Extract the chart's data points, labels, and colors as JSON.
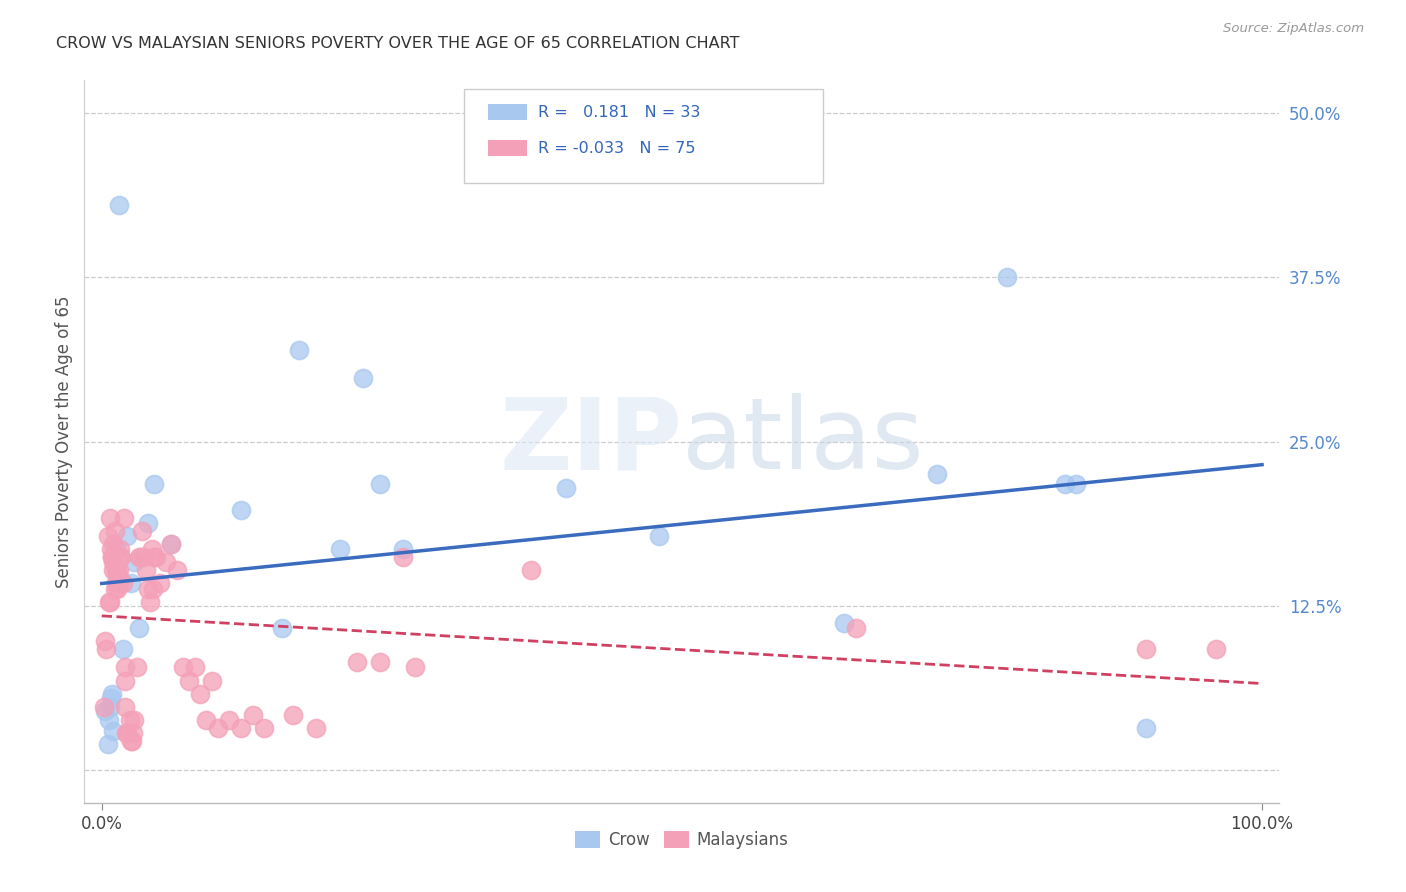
{
  "title": "CROW VS MALAYSIAN SENIORS POVERTY OVER THE AGE OF 65 CORRELATION CHART",
  "source": "Source: ZipAtlas.com",
  "ylabel_label": "Seniors Poverty Over the Age of 65",
  "crow_color": "#a8c8f0",
  "malay_color": "#f4a0b8",
  "crow_line_color": "#3a6bbf",
  "malay_line_color": "#d04060",
  "watermark_zip": "ZIP",
  "watermark_atlas": "atlas",
  "crow_points": [
    [
      0.003,
      0.045
    ],
    [
      0.005,
      0.02
    ],
    [
      0.006,
      0.038
    ],
    [
      0.007,
      0.048
    ],
    [
      0.008,
      0.055
    ],
    [
      0.009,
      0.058
    ],
    [
      0.01,
      0.03
    ],
    [
      0.012,
      0.168
    ],
    [
      0.014,
      0.148
    ],
    [
      0.015,
      0.43
    ],
    [
      0.018,
      0.092
    ],
    [
      0.022,
      0.178
    ],
    [
      0.025,
      0.142
    ],
    [
      0.028,
      0.158
    ],
    [
      0.032,
      0.108
    ],
    [
      0.04,
      0.188
    ],
    [
      0.045,
      0.218
    ],
    [
      0.06,
      0.172
    ],
    [
      0.12,
      0.198
    ],
    [
      0.155,
      0.108
    ],
    [
      0.17,
      0.32
    ],
    [
      0.205,
      0.168
    ],
    [
      0.225,
      0.298
    ],
    [
      0.24,
      0.218
    ],
    [
      0.26,
      0.168
    ],
    [
      0.4,
      0.215
    ],
    [
      0.48,
      0.178
    ],
    [
      0.64,
      0.112
    ],
    [
      0.72,
      0.225
    ],
    [
      0.78,
      0.375
    ],
    [
      0.83,
      0.218
    ],
    [
      0.84,
      0.218
    ],
    [
      0.9,
      0.032
    ]
  ],
  "malay_points": [
    [
      0.002,
      0.048
    ],
    [
      0.003,
      0.098
    ],
    [
      0.004,
      0.092
    ],
    [
      0.005,
      0.178
    ],
    [
      0.006,
      0.128
    ],
    [
      0.007,
      0.128
    ],
    [
      0.007,
      0.192
    ],
    [
      0.008,
      0.168
    ],
    [
      0.009,
      0.162
    ],
    [
      0.009,
      0.162
    ],
    [
      0.01,
      0.172
    ],
    [
      0.01,
      0.158
    ],
    [
      0.01,
      0.152
    ],
    [
      0.011,
      0.138
    ],
    [
      0.011,
      0.182
    ],
    [
      0.012,
      0.152
    ],
    [
      0.012,
      0.142
    ],
    [
      0.013,
      0.148
    ],
    [
      0.013,
      0.138
    ],
    [
      0.013,
      0.152
    ],
    [
      0.014,
      0.148
    ],
    [
      0.015,
      0.152
    ],
    [
      0.015,
      0.142
    ],
    [
      0.016,
      0.162
    ],
    [
      0.016,
      0.168
    ],
    [
      0.017,
      0.162
    ],
    [
      0.018,
      0.142
    ],
    [
      0.019,
      0.192
    ],
    [
      0.02,
      0.078
    ],
    [
      0.02,
      0.068
    ],
    [
      0.02,
      0.048
    ],
    [
      0.021,
      0.028
    ],
    [
      0.022,
      0.028
    ],
    [
      0.024,
      0.038
    ],
    [
      0.025,
      0.022
    ],
    [
      0.026,
      0.022
    ],
    [
      0.027,
      0.028
    ],
    [
      0.028,
      0.038
    ],
    [
      0.03,
      0.078
    ],
    [
      0.032,
      0.162
    ],
    [
      0.034,
      0.162
    ],
    [
      0.035,
      0.182
    ],
    [
      0.036,
      0.162
    ],
    [
      0.038,
      0.152
    ],
    [
      0.04,
      0.138
    ],
    [
      0.042,
      0.128
    ],
    [
      0.043,
      0.168
    ],
    [
      0.044,
      0.138
    ],
    [
      0.045,
      0.162
    ],
    [
      0.047,
      0.162
    ],
    [
      0.05,
      0.142
    ],
    [
      0.055,
      0.158
    ],
    [
      0.06,
      0.172
    ],
    [
      0.065,
      0.152
    ],
    [
      0.07,
      0.078
    ],
    [
      0.075,
      0.068
    ],
    [
      0.08,
      0.078
    ],
    [
      0.085,
      0.058
    ],
    [
      0.09,
      0.038
    ],
    [
      0.095,
      0.068
    ],
    [
      0.1,
      0.032
    ],
    [
      0.11,
      0.038
    ],
    [
      0.12,
      0.032
    ],
    [
      0.13,
      0.042
    ],
    [
      0.14,
      0.032
    ],
    [
      0.165,
      0.042
    ],
    [
      0.185,
      0.032
    ],
    [
      0.22,
      0.082
    ],
    [
      0.24,
      0.082
    ],
    [
      0.26,
      0.162
    ],
    [
      0.27,
      0.078
    ],
    [
      0.37,
      0.152
    ],
    [
      0.65,
      0.108
    ],
    [
      0.9,
      0.092
    ],
    [
      0.96,
      0.092
    ]
  ]
}
